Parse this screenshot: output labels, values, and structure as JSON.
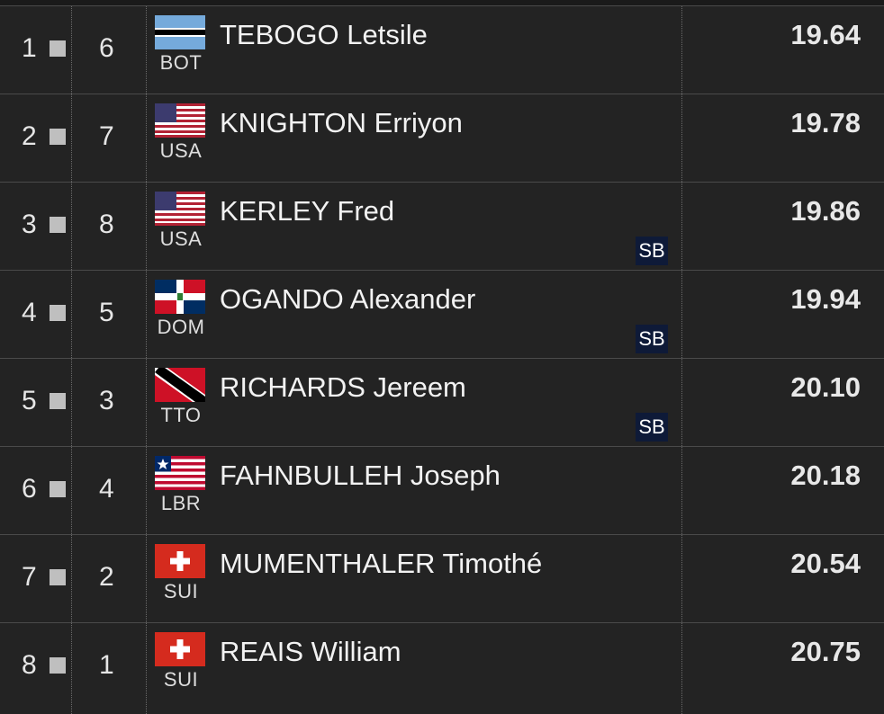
{
  "results": [
    {
      "place": "1",
      "lane": "6",
      "country": "BOT",
      "name": "TEBOGO Letsile",
      "mark": "19.64",
      "badge": "",
      "flag": "bot-flag-icon"
    },
    {
      "place": "2",
      "lane": "7",
      "country": "USA",
      "name": "KNIGHTON Erriyon",
      "mark": "19.78",
      "badge": "",
      "flag": "usa-flag-icon"
    },
    {
      "place": "3",
      "lane": "8",
      "country": "USA",
      "name": "KERLEY Fred",
      "mark": "19.86",
      "badge": "SB",
      "flag": "usa-flag-icon"
    },
    {
      "place": "4",
      "lane": "5",
      "country": "DOM",
      "name": "OGANDO Alexander",
      "mark": "19.94",
      "badge": "SB",
      "flag": "dom-flag-icon"
    },
    {
      "place": "5",
      "lane": "3",
      "country": "TTO",
      "name": "RICHARDS Jereem",
      "mark": "20.10",
      "badge": "SB",
      "flag": "tto-flag-icon"
    },
    {
      "place": "6",
      "lane": "4",
      "country": "LBR",
      "name": "FAHNBULLEH Joseph",
      "mark": "20.18",
      "badge": "",
      "flag": "lbr-flag-icon"
    },
    {
      "place": "7",
      "lane": "2",
      "country": "SUI",
      "name": "MUMENTHALER Timothé",
      "mark": "20.54",
      "badge": "",
      "flag": "sui-flag-icon"
    },
    {
      "place": "8",
      "lane": "1",
      "country": "SUI",
      "name": "REAIS William",
      "mark": "20.75",
      "badge": "",
      "flag": "sui-flag-icon"
    }
  ],
  "colors": {
    "background": "#232323",
    "badge": "#0e1a38",
    "divider": "#4a4a4a"
  }
}
